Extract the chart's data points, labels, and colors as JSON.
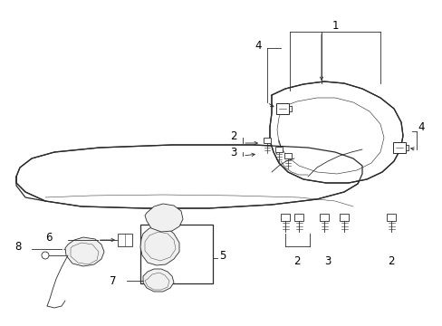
{
  "bg_color": "#ffffff",
  "line_color": "#2a2a2a",
  "label_color": "#000000",
  "figsize": [
    4.89,
    3.6
  ],
  "dpi": 100,
  "lw_main": 0.9,
  "lw_thin": 0.6,
  "label_fs": 8.5
}
